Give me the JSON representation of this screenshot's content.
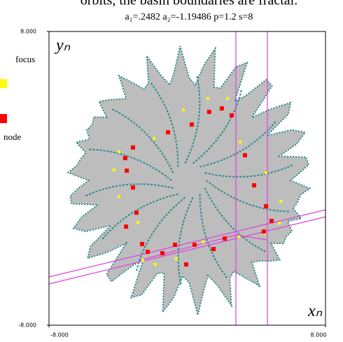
{
  "chart_data": {
    "type": "scatter",
    "title": "orbits, the basin boundaries are fractal.",
    "subtitle": "a₁=.2482  a₂=-1.19486 p=1.2 s=8",
    "x_label": "xₙ",
    "y_label": "yₙ",
    "xlim": [
      -8,
      8
    ],
    "ylim": [
      -8,
      8
    ],
    "xticks": [
      {
        "value": -8,
        "label": "-8.000"
      },
      {
        "value": 8,
        "label": "8.000"
      }
    ],
    "yticks": [
      {
        "value": -8,
        "label": "-8.000"
      },
      {
        "value": 8,
        "label": "8.000"
      }
    ],
    "legend": "left",
    "series": [
      {
        "name": "focus",
        "color": "#ffff00",
        "x": [
          -0.22,
          1.19,
          2.33,
          3.06,
          -3.95,
          -4.23,
          -3.95,
          -2.86,
          4.56,
          5.41,
          5.33,
          4.47,
          3.0,
          0.91,
          -0.63,
          -1.84,
          -2.57,
          -1.92
        ],
        "values": [
          3.73,
          4.34,
          4.34,
          1.98,
          1.45,
          0.46,
          -0.99,
          -2.4,
          0.3,
          -1.26,
          -2.44,
          -3.01,
          -3.2,
          -3.47,
          -4.38,
          -4.69,
          -4.46,
          2.17
        ]
      },
      {
        "name": "node",
        "color": "#ff0000",
        "x": [
          1.27,
          2.0,
          2.57,
          0.26,
          -1.11,
          -3.14,
          -3.59,
          -3.5,
          -3.14,
          -2.94,
          -3.54,
          -2.61,
          -2.29,
          -1.44,
          -0.71,
          0.42,
          2.17,
          3.34,
          3.87,
          4.56,
          4.88,
          4.43,
          -0.06,
          1.52
        ],
        "values": [
          3.62,
          3.81,
          3.43,
          2.93,
          2.51,
          1.68,
          1.1,
          0.42,
          -0.5,
          -1.87,
          -2.63,
          -3.58,
          -4.0,
          -4.08,
          -3.62,
          -3.62,
          -3.28,
          1.26,
          -0.38,
          -1.52,
          -2.32,
          -2.9,
          -4.69,
          -3.85
        ]
      }
    ]
  }
}
